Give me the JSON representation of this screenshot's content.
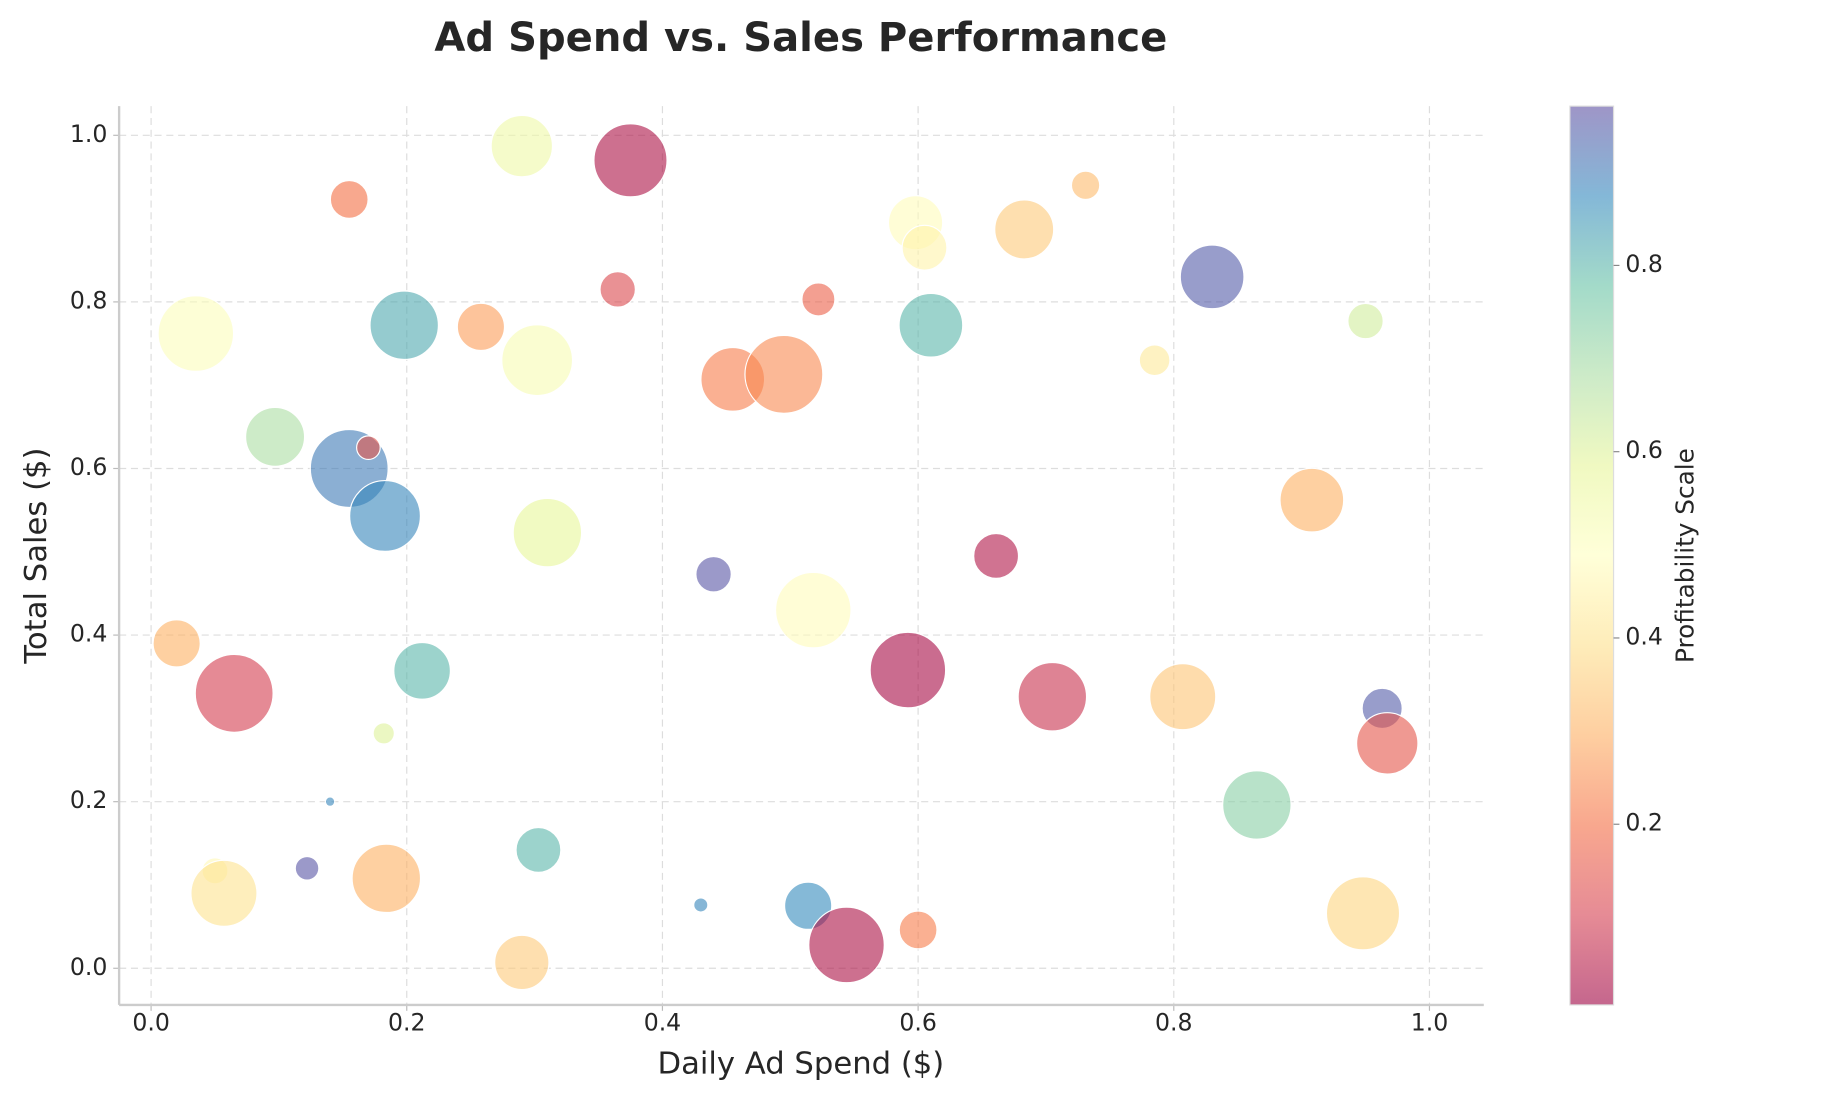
{
  "chart_data": {
    "type": "bubble",
    "title": "Ad Spend vs. Sales Performance",
    "x_label": "Daily Ad Spend ($)",
    "y_label": "Total Sales ($)",
    "xlim": [
      -0.025,
      1.0425
    ],
    "ylim": [
      -0.044,
      1.035
    ],
    "xticks": [
      {
        "value": 0,
        "label": "0.0"
      },
      0.2,
      0.4,
      0.6,
      0.8,
      {
        "value": 1,
        "label": "1.0"
      }
    ],
    "yticks": [
      {
        "value": 0,
        "label": "0.0"
      },
      0.2,
      0.4,
      0.6,
      0.8,
      {
        "value": 1,
        "label": "1.0"
      }
    ],
    "grid": true,
    "colormap": [
      "#9e0142",
      "#d53e4f",
      "#f46d43",
      "#fdae61",
      "#fee08b",
      "#ffffbf",
      "#e6f598",
      "#abdda4",
      "#66c2a5",
      "#3288bd",
      "#5e4fa2"
    ],
    "alpha": 0.6,
    "colorbar": {
      "label": "Profitability Scale",
      "clim": [
        0.006,
        0.971
      ],
      "ticks": [
        0.2,
        0.4,
        0.6,
        0.8
      ]
    },
    "x": [
      0.375,
      0.29,
      0.155,
      0.035,
      0.198,
      0.258,
      0.365,
      0.302,
      0.455,
      0.495,
      0.522,
      0.598,
      0.605,
      0.61,
      0.683,
      0.731,
      0.83,
      0.95,
      0.785,
      0.097,
      0.155,
      0.17,
      0.183,
      0.31,
      0.44,
      0.518,
      0.661,
      0.908,
      0.02,
      0.065,
      0.212,
      0.182,
      0.592,
      0.705,
      0.807,
      0.963,
      0.967,
      0.865,
      0.14,
      0.122,
      0.05,
      0.057,
      0.184,
      0.303,
      0.29,
      0.43,
      0.514,
      0.544,
      0.6,
      0.948
    ],
    "values": [
      0.97,
      0.987,
      0.923,
      0.762,
      0.772,
      0.77,
      0.815,
      0.73,
      0.707,
      0.713,
      0.803,
      0.895,
      0.865,
      0.772,
      0.887,
      0.94,
      0.83,
      0.777,
      0.73,
      0.638,
      0.6,
      0.625,
      0.543,
      0.523,
      0.473,
      0.43,
      0.495,
      0.562,
      0.39,
      0.33,
      0.357,
      0.282,
      0.358,
      0.326,
      0.326,
      0.312,
      0.27,
      0.196,
      0.2,
      0.12,
      0.117,
      0.09,
      0.108,
      0.142,
      0.007,
      0.076,
      0.075,
      0.028,
      0.046,
      0.066
    ],
    "sizes": [
      961,
      676,
      256,
      1024,
      841,
      400,
      225,
      900,
      729,
      1089,
      196,
      529,
      361,
      729,
      625,
      144,
      729,
      225,
      169,
      625,
      1089,
      100,
      900,
      841,
      225,
      1024,
      361,
      729,
      400,
      1089,
      576,
      81,
      1024,
      841,
      784,
      289,
      676,
      841,
      16,
      100,
      121,
      784,
      841,
      361,
      529,
      36,
      400,
      1024,
      256,
      961
    ],
    "color_values": [
      0.03,
      0.55,
      0.2,
      0.5,
      0.82,
      0.27,
      0.12,
      0.52,
      0.22,
      0.24,
      0.17,
      0.48,
      0.45,
      0.8,
      0.35,
      0.32,
      0.95,
      0.62,
      0.42,
      0.68,
      0.9,
      0.15,
      0.88,
      0.58,
      0.96,
      0.48,
      0.04,
      0.3,
      0.3,
      0.1,
      0.8,
      0.6,
      0.02,
      0.08,
      0.34,
      0.95,
      0.15,
      0.73,
      0.88,
      0.96,
      0.47,
      0.4,
      0.3,
      0.8,
      0.35,
      0.88,
      0.87,
      0.03,
      0.22,
      0.37
    ]
  }
}
